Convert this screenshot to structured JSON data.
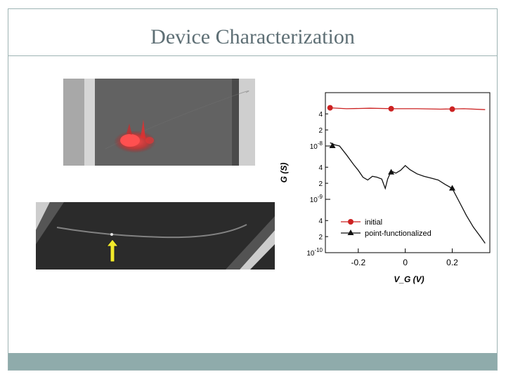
{
  "slide": {
    "title": "Device Characterization"
  },
  "colors": {
    "frame": "#9db3b3",
    "footer": "#8fabab",
    "title_text": "#5e6f75",
    "series_initial": "#cc2222",
    "series_point": "#111111"
  },
  "chart_data": {
    "type": "line",
    "xlabel": "V_G (V)",
    "ylabel": "G (S)",
    "yscale": "log",
    "xlim": [
      -0.34,
      0.36
    ],
    "ylim": [
      1e-10,
      1e-07
    ],
    "xticks": [
      -0.2,
      0,
      0.2
    ],
    "xtick_labels": [
      "-0.2",
      "0",
      "0.2"
    ],
    "ytick_labels": [
      {
        "value": 1e-10,
        "mant": "10",
        "exp": "-10"
      },
      {
        "value": 2e-10,
        "mant": "2",
        "exp": ""
      },
      {
        "value": 4e-10,
        "mant": "4",
        "exp": ""
      },
      {
        "value": 1e-09,
        "mant": "10",
        "exp": "-9"
      },
      {
        "value": 2e-09,
        "mant": "2",
        "exp": ""
      },
      {
        "value": 4e-09,
        "mant": "4",
        "exp": ""
      },
      {
        "value": 1e-08,
        "mant": "10",
        "exp": "-8"
      },
      {
        "value": 2e-08,
        "mant": "2",
        "exp": ""
      },
      {
        "value": 4e-08,
        "mant": "4",
        "exp": ""
      }
    ],
    "legend_position": "bottom-left",
    "series": [
      {
        "name": "initial",
        "color": "#cc2222",
        "marker": "circle",
        "x": [
          -0.32,
          -0.25,
          -0.15,
          -0.05,
          0.05,
          0.15,
          0.25,
          0.34
        ],
        "y": [
          5.2e-08,
          5e-08,
          5.1e-08,
          5e-08,
          5e-08,
          4.9e-08,
          5e-08,
          4.8e-08
        ],
        "marker_x": [
          -0.32,
          -0.06,
          0.2
        ],
        "marker_y": [
          5.2e-08,
          5e-08,
          4.9e-08
        ]
      },
      {
        "name": "point-functionalized",
        "color": "#111111",
        "marker": "triangle",
        "x": [
          -0.32,
          -0.3,
          -0.28,
          -0.25,
          -0.22,
          -0.2,
          -0.18,
          -0.16,
          -0.14,
          -0.12,
          -0.1,
          -0.085,
          -0.075,
          -0.06,
          -0.04,
          -0.02,
          0.0,
          0.02,
          0.05,
          0.08,
          0.11,
          0.14,
          0.17,
          0.2,
          0.23,
          0.26,
          0.29,
          0.32,
          0.34
        ],
        "y": [
          1.15e-08,
          1.05e-08,
          1e-08,
          6.8e-09,
          4.5e-09,
          3.5e-09,
          2.6e-09,
          2.3e-09,
          2.7e-09,
          2.6e-09,
          2.4e-09,
          1.6e-09,
          2.4e-09,
          3.4e-09,
          3.1e-09,
          3.5e-09,
          4.3e-09,
          3.6e-09,
          3e-09,
          2.7e-09,
          2.5e-09,
          2.3e-09,
          1.9e-09,
          1.6e-09,
          9e-10,
          5e-10,
          3e-10,
          2e-10,
          1.5e-10
        ],
        "marker_x": [
          -0.31,
          -0.06,
          0.2
        ],
        "marker_y": [
          1e-08,
          3.2e-09,
          1.6e-09
        ]
      }
    ]
  }
}
